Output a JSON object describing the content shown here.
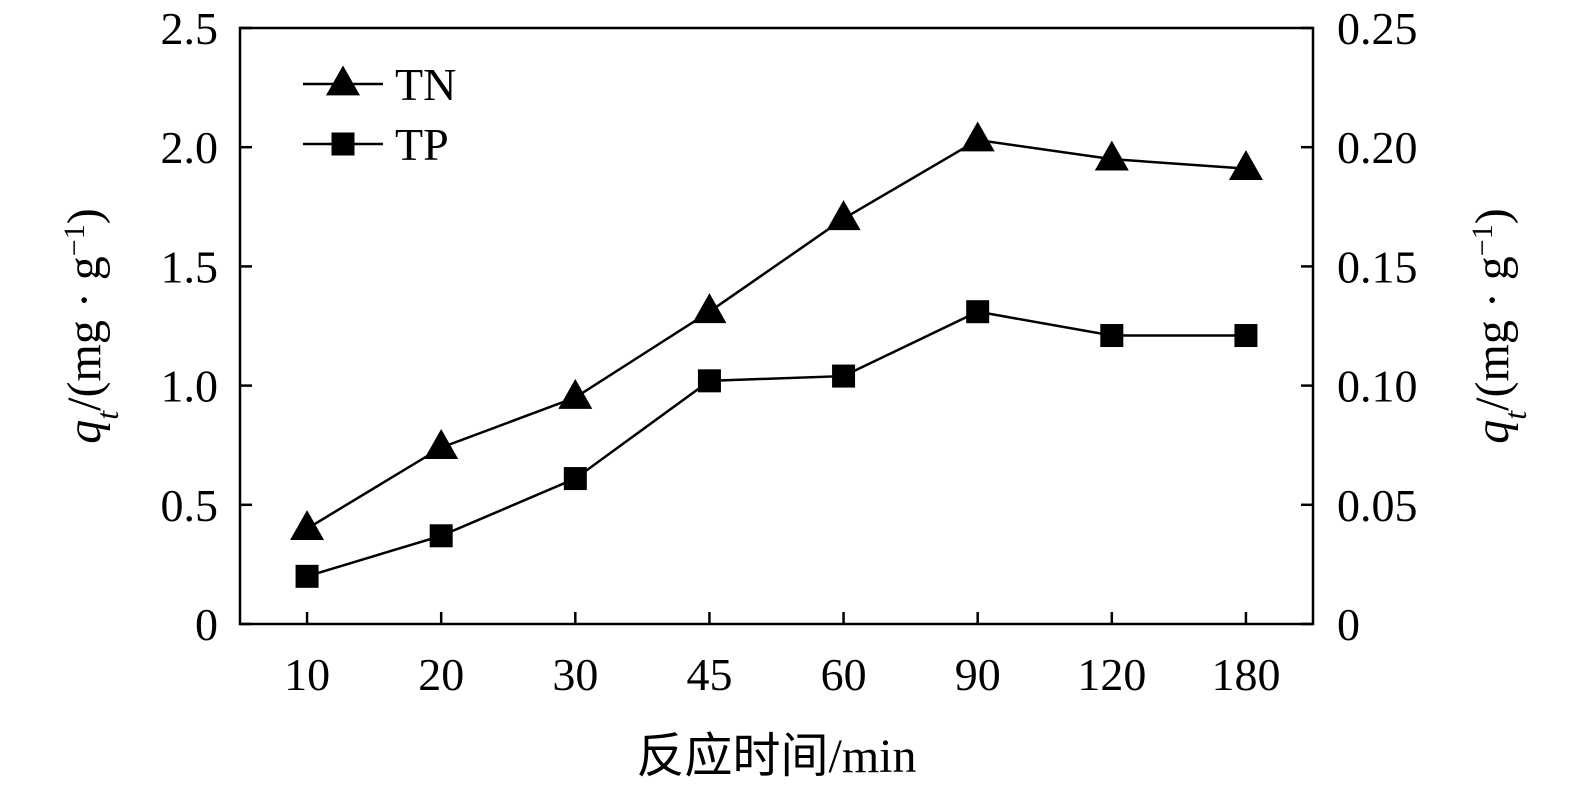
{
  "chart_data": {
    "type": "line",
    "categories": [
      "10",
      "20",
      "30",
      "45",
      "60",
      "90",
      "120",
      "180"
    ],
    "xlabel": "反应时间/min",
    "ylabel_left": {
      "var": "q",
      "sub": "t",
      "rest": "/(mg · g",
      "sup": "−1",
      "close": ")"
    },
    "ylabel_right": {
      "var": "q",
      "sub": "t",
      "rest": "/(mg · g",
      "sup": "−1",
      "close": ")"
    },
    "left_axis": {
      "min": 0,
      "max": 2.5,
      "ticks": [
        "0",
        "0.5",
        "1.0",
        "1.5",
        "2.0",
        "2.5"
      ]
    },
    "right_axis": {
      "min": 0,
      "max": 0.25,
      "ticks": [
        "0",
        "0.05",
        "0.10",
        "0.15",
        "0.20",
        "0.25"
      ]
    },
    "grid": false,
    "legend_position": "top-left",
    "series": [
      {
        "name": "TN",
        "axis": "left",
        "marker": "triangle",
        "values": [
          0.4,
          0.74,
          0.95,
          1.31,
          1.7,
          2.03,
          1.95,
          1.91
        ]
      },
      {
        "name": "TP",
        "axis": "right",
        "marker": "square",
        "values": [
          0.02,
          0.037,
          0.061,
          0.102,
          0.104,
          0.131,
          0.121,
          0.121
        ]
      }
    ],
    "colors": {
      "line": "#000000",
      "marker": "#000000"
    }
  }
}
